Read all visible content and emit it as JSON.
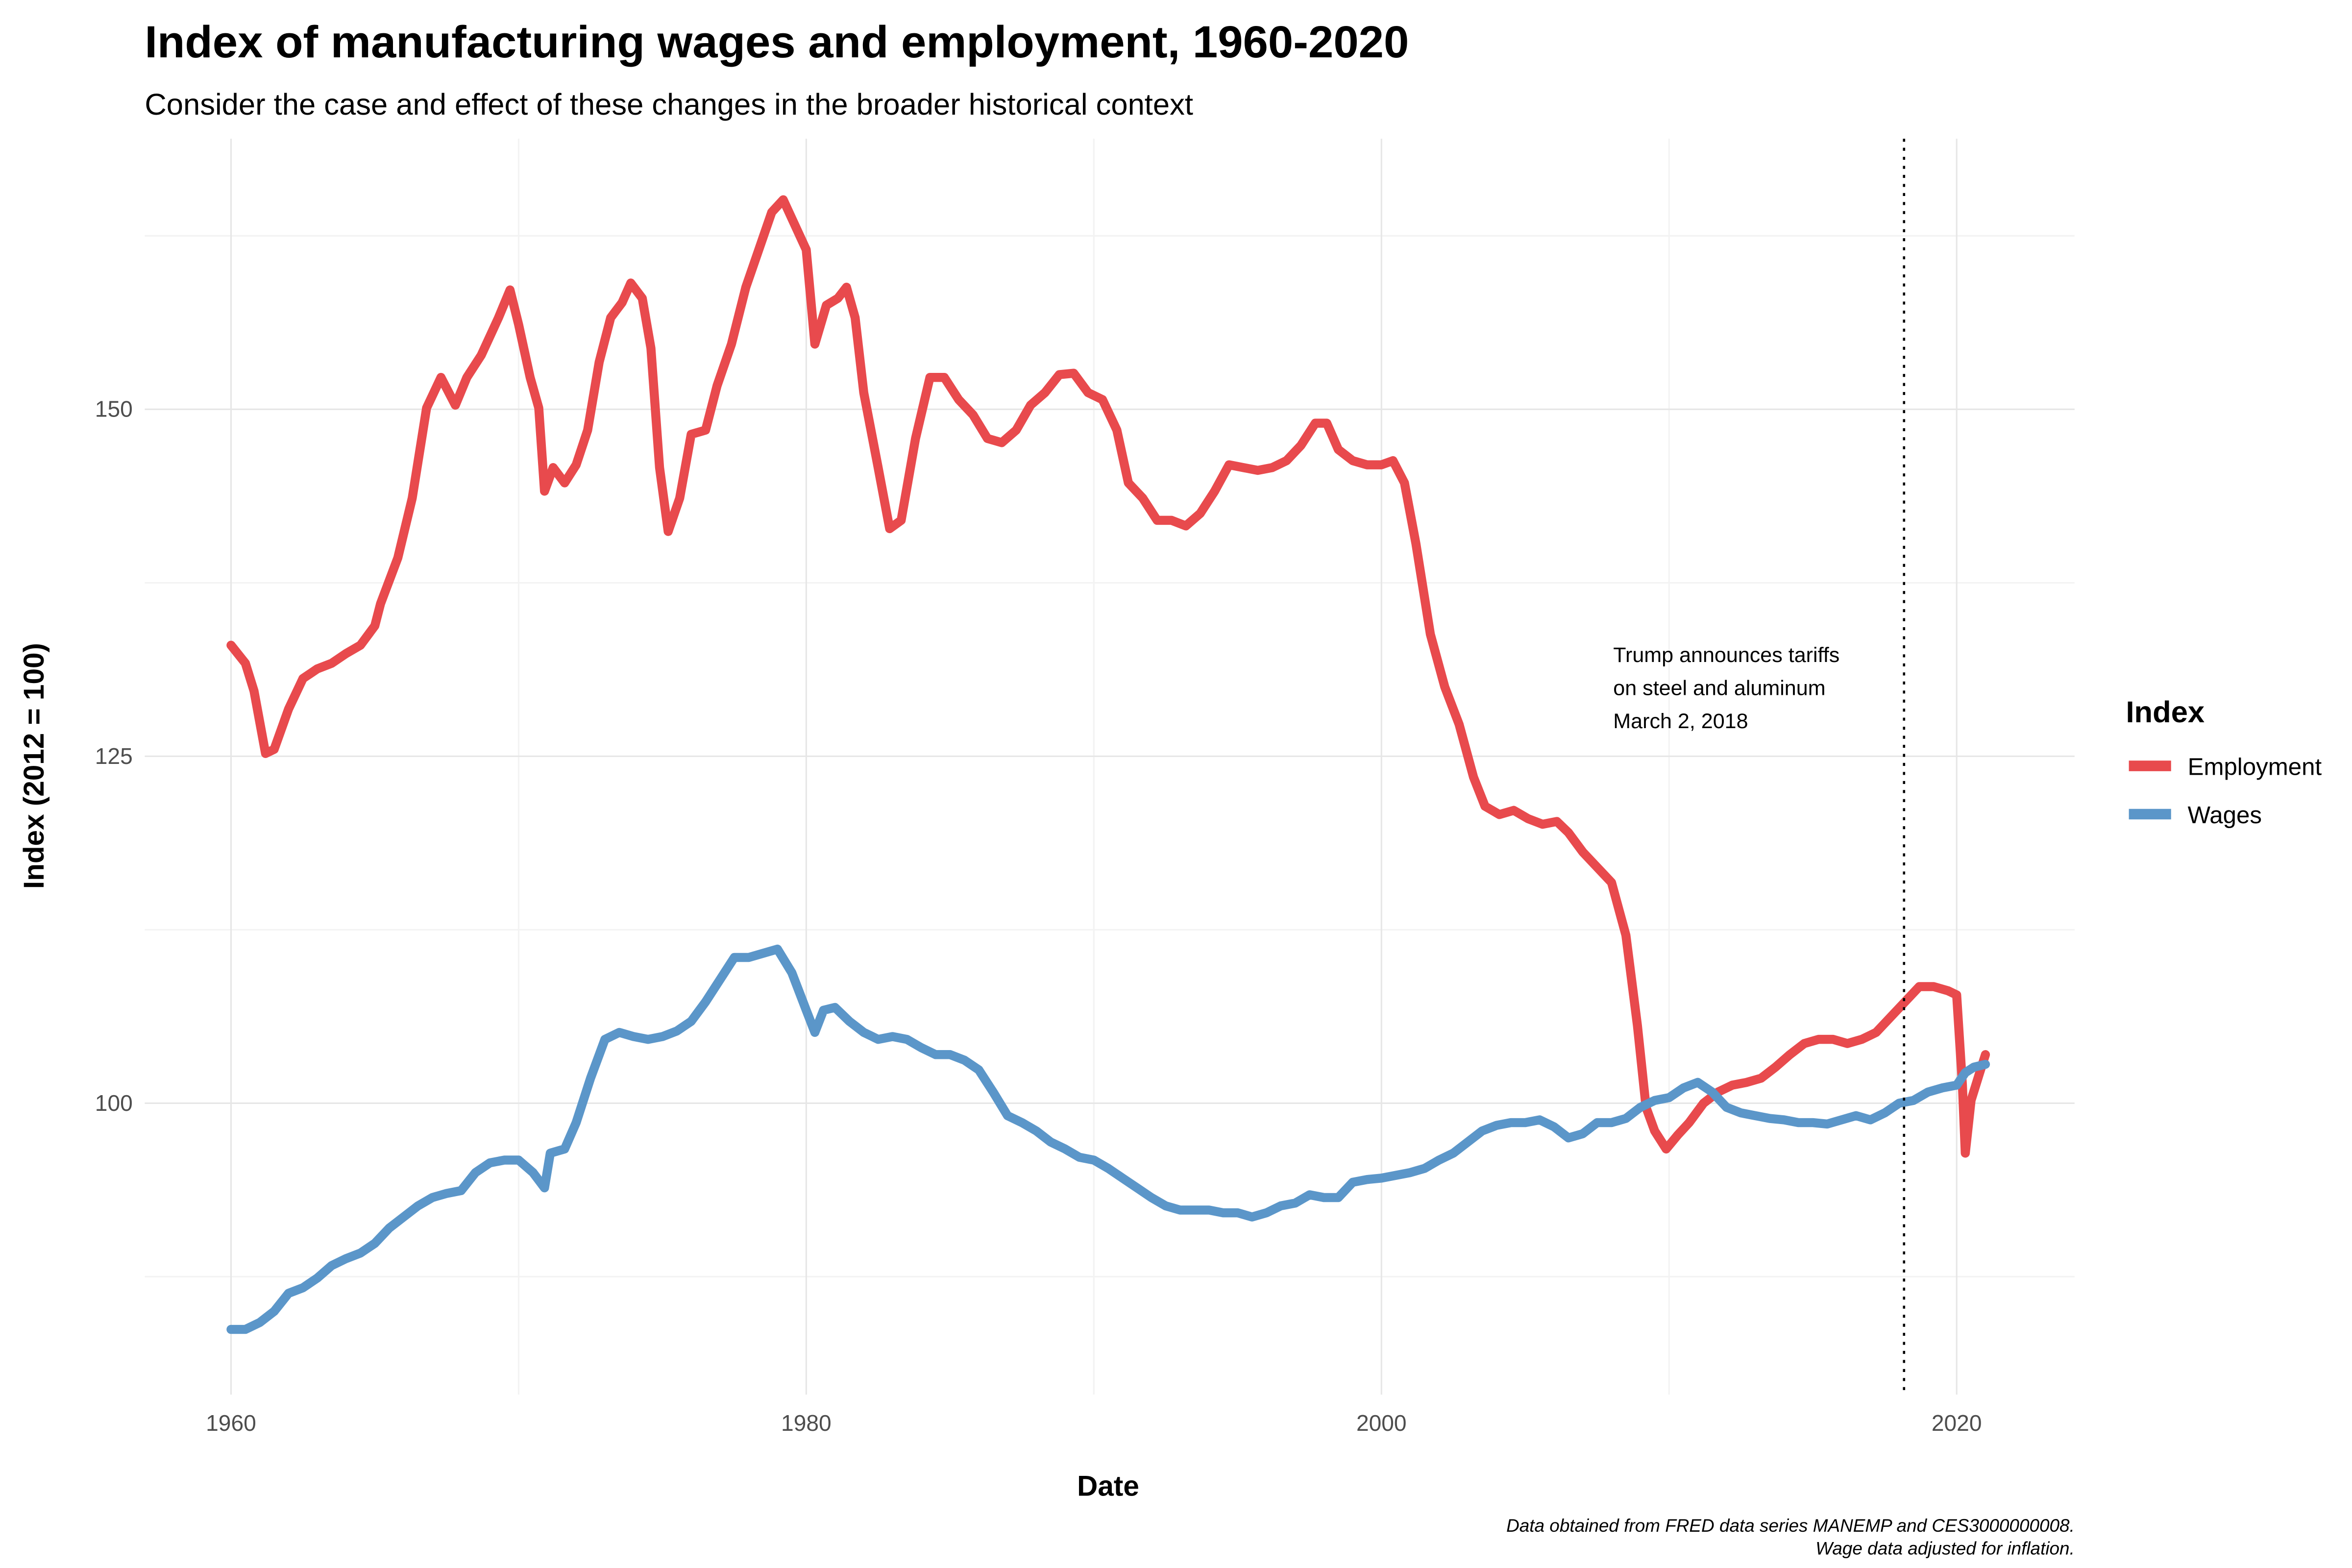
{
  "chart_data": {
    "type": "line",
    "title": "Index of manufacturing wages and employment, 1960-2020",
    "subtitle": "Consider the case and effect of these changes in the broader historical context",
    "x_label": "Date",
    "y_label": "Index (2012 = 100)",
    "legend_title": "Index",
    "legend_position": "right",
    "grid": true,
    "xlim": [
      1957,
      2024.1
    ],
    "ylim": [
      79,
      169.5
    ],
    "xticks": [
      1960,
      1980,
      2000,
      2020
    ],
    "yticks": [
      100,
      125,
      150
    ],
    "x_minor_ticks": [
      1970,
      1990,
      2010
    ],
    "y_minor_ticks": [
      87.5,
      112.5,
      137.5,
      162.5
    ],
    "vline": {
      "x": 2018.17,
      "style": "dotted",
      "color": "#000000"
    },
    "annotation": [
      "Trump announces tariffs",
      "on steel and aluminum",
      "March 2, 2018"
    ],
    "caption": [
      "Data obtained from FRED data series MANEMP and CES3000000008.",
      "Wage data adjusted for inflation."
    ],
    "series": [
      {
        "name": "Employment",
        "color": "#e84a4d",
        "x": [
          1960,
          1960.5,
          1960.8,
          1961.2,
          1961.5,
          1962,
          1962.5,
          1963,
          1963.5,
          1964,
          1964.5,
          1965,
          1965.2,
          1965.8,
          1966.3,
          1966.8,
          1967.3,
          1967.8,
          1968.2,
          1968.7,
          1969.3,
          1969.7,
          1970,
          1970.4,
          1970.7,
          1970.9,
          1971.2,
          1971.6,
          1972,
          1972.4,
          1972.8,
          1973.2,
          1973.6,
          1973.9,
          1974.3,
          1974.6,
          1974.9,
          1975.2,
          1975.6,
          1976,
          1976.5,
          1976.9,
          1977.4,
          1977.9,
          1978.4,
          1978.8,
          1979.2,
          1979.6,
          1980,
          1980.3,
          1980.7,
          1981.1,
          1981.4,
          1981.7,
          1982,
          1982.5,
          1982.9,
          1983.3,
          1983.8,
          1984.3,
          1984.8,
          1985.3,
          1985.8,
          1986.3,
          1986.8,
          1987.3,
          1987.8,
          1988.3,
          1988.8,
          1989.3,
          1989.8,
          1990.3,
          1990.8,
          1991.2,
          1991.7,
          1992.2,
          1992.7,
          1993.2,
          1993.7,
          1994.2,
          1994.7,
          1995.2,
          1995.7,
          1996.2,
          1996.7,
          1997.2,
          1997.7,
          1998.1,
          1998.5,
          1999,
          1999.5,
          2000,
          2000.4,
          2000.8,
          2001.2,
          2001.7,
          2002.2,
          2002.7,
          2003.2,
          2003.6,
          2004.1,
          2004.6,
          2005.1,
          2005.6,
          2006.1,
          2006.5,
          2007,
          2007.5,
          2008,
          2008.5,
          2008.9,
          2009.2,
          2009.5,
          2009.9,
          2010.3,
          2010.7,
          2011.2,
          2011.7,
          2012.2,
          2012.7,
          2013.2,
          2013.7,
          2014.2,
          2014.7,
          2015.2,
          2015.7,
          2016.2,
          2016.7,
          2017.2,
          2017.7,
          2018.2,
          2018.7,
          2019.2,
          2019.7,
          2020,
          2020.2,
          2020.3,
          2020.5,
          2020.8,
          2021
        ],
        "values": [
          133,
          131.7,
          129.7,
          125.2,
          125.5,
          128.4,
          130.6,
          131.3,
          131.7,
          132.4,
          133,
          134.4,
          136,
          139.3,
          143.6,
          150.1,
          152.3,
          150.3,
          152.3,
          153.9,
          156.6,
          158.6,
          156.1,
          152.3,
          150.1,
          144.1,
          145.8,
          144.7,
          146,
          148.5,
          153.4,
          156.6,
          157.7,
          159.1,
          158,
          154.4,
          145.8,
          141.2,
          143.6,
          148.2,
          148.5,
          151.7,
          154.7,
          158.8,
          161.8,
          164.2,
          165.1,
          163.3,
          161.5,
          154.7,
          157.5,
          158,
          158.8,
          156.6,
          151.2,
          145.8,
          141.4,
          142,
          147.9,
          152.3,
          152.3,
          150.7,
          149.6,
          147.9,
          147.6,
          148.5,
          150.3,
          151.2,
          152.5,
          152.6,
          151.2,
          150.7,
          148.5,
          144.7,
          143.6,
          142,
          142,
          141.6,
          142.5,
          144.1,
          146,
          145.8,
          145.6,
          145.8,
          146.3,
          147.4,
          149,
          149,
          147.1,
          146.3,
          146,
          146,
          146.3,
          144.7,
          140.3,
          133.8,
          130,
          127.3,
          123.5,
          121.4,
          120.8,
          121.1,
          120.5,
          120.1,
          120.3,
          119.5,
          118.1,
          117,
          115.9,
          112.1,
          105.6,
          99.7,
          98,
          96.7,
          97.7,
          98.6,
          100,
          100.8,
          101.3,
          101.5,
          101.8,
          102.6,
          103.5,
          104.3,
          104.6,
          104.6,
          104.3,
          104.6,
          105.1,
          106.2,
          107.3,
          108.4,
          108.4,
          108.1,
          107.8,
          101.3,
          96.4,
          100.2,
          102.2,
          103.5
        ]
      },
      {
        "name": "Wages",
        "color": "#5b96c9",
        "x": [
          1960,
          1960.5,
          1961,
          1961.5,
          1962,
          1962.5,
          1963,
          1963.5,
          1964,
          1964.5,
          1965,
          1965.5,
          1966,
          1966.5,
          1967,
          1967.5,
          1968,
          1968.5,
          1969,
          1969.5,
          1970,
          1970.5,
          1970.9,
          1971.1,
          1971.6,
          1972,
          1972.5,
          1973,
          1973.5,
          1974,
          1974.5,
          1975,
          1975.5,
          1976,
          1976.5,
          1977,
          1977.5,
          1978,
          1978.5,
          1979,
          1979.5,
          1980,
          1980.3,
          1980.6,
          1981,
          1981.5,
          1982,
          1982.5,
          1983,
          1983.5,
          1984,
          1984.5,
          1985,
          1985.5,
          1986,
          1986.5,
          1987,
          1987.5,
          1988,
          1988.5,
          1989,
          1989.5,
          1990,
          1990.5,
          1991,
          1991.5,
          1992,
          1992.5,
          1993,
          1993.5,
          1994,
          1994.5,
          1995,
          1995.5,
          1996,
          1996.5,
          1997,
          1997.5,
          1998,
          1998.5,
          1999,
          1999.5,
          2000,
          2000.5,
          2001,
          2001.5,
          2002,
          2002.5,
          2003,
          2003.5,
          2004,
          2004.5,
          2005,
          2005.5,
          2006,
          2006.5,
          2007,
          2007.5,
          2008,
          2008.5,
          2009,
          2009.5,
          2010,
          2010.5,
          2011,
          2011.5,
          2012,
          2012.5,
          2013,
          2013.5,
          2014,
          2014.5,
          2015,
          2015.5,
          2016,
          2016.5,
          2017,
          2017.5,
          2018,
          2018.5,
          2019,
          2019.5,
          2020,
          2020.3,
          2020.6,
          2021
        ],
        "values": [
          83.7,
          83.7,
          84.2,
          85,
          86.3,
          86.7,
          87.4,
          88.3,
          88.8,
          89.2,
          89.9,
          91,
          91.8,
          92.6,
          93.2,
          93.5,
          93.7,
          95,
          95.7,
          95.9,
          95.9,
          95,
          93.9,
          96.4,
          96.7,
          98.6,
          101.8,
          104.6,
          105.1,
          104.8,
          104.6,
          104.8,
          105.2,
          105.9,
          107.3,
          108.9,
          110.5,
          110.5,
          110.8,
          111.1,
          109.4,
          106.7,
          105.1,
          106.7,
          106.9,
          105.9,
          105.1,
          104.6,
          104.8,
          104.6,
          104,
          103.5,
          103.5,
          103.1,
          102.4,
          100.8,
          99.1,
          98.6,
          98,
          97.2,
          96.7,
          96.1,
          95.9,
          95.3,
          94.6,
          93.9,
          93.2,
          92.6,
          92.3,
          92.3,
          92.3,
          92.1,
          92.1,
          91.8,
          92.1,
          92.6,
          92.8,
          93.4,
          93.2,
          93.2,
          94.3,
          94.5,
          94.6,
          94.8,
          95,
          95.3,
          95.9,
          96.4,
          97.2,
          98,
          98.4,
          98.6,
          98.6,
          98.8,
          98.3,
          97.5,
          97.8,
          98.6,
          98.6,
          98.9,
          99.7,
          100.2,
          100.4,
          101.1,
          101.5,
          100.8,
          99.7,
          99.3,
          99.1,
          98.9,
          98.8,
          98.6,
          98.6,
          98.5,
          98.8,
          99.1,
          98.8,
          99.3,
          100,
          100.2,
          100.8,
          101.1,
          101.3,
          102.2,
          102.6,
          102.8
        ]
      }
    ]
  }
}
